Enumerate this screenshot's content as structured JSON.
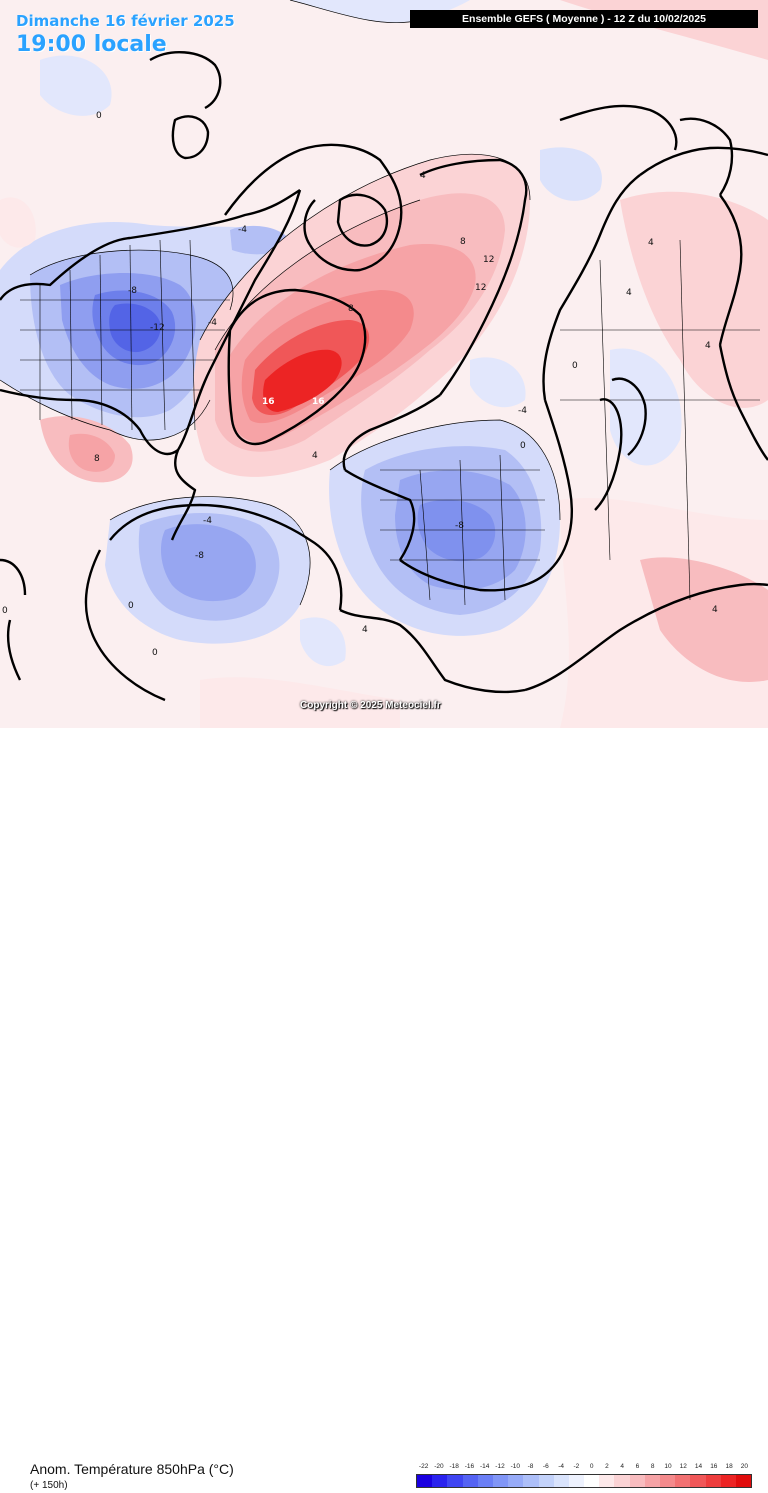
{
  "header": {
    "date_label": "Dimanche 16 février 2025",
    "time_label": "19:00 locale",
    "run_label": "Ensemble GEFS  ( Moyenne )  -  12 Z du 10/02/2025"
  },
  "map_labels": {
    "n_america_core": "-12",
    "n_america_mid": "-8",
    "n_america_outer": "-4",
    "greenland_a": "16",
    "greenland_b": "16",
    "greenland_c": "12",
    "greenland_d": "8",
    "greenland_e": "4",
    "arctic_a": "12",
    "arctic_b": "8",
    "arctic_c": "4",
    "atlantic_low_core": "-8",
    "atlantic_low_outer": "-4",
    "europe_core": "-8",
    "europe_outer": "-4",
    "us_east_warm": "8",
    "zero_a": "0",
    "zero_b": "0",
    "zero_c": "0",
    "zero_d": "0",
    "zero_e": "0",
    "zero_f": "0",
    "asia_a": "4",
    "asia_b": "4",
    "asia_c": "4",
    "asia_d": "4",
    "africa_a": "4",
    "canada_top": "-4"
  },
  "copyright": "Copyright © 2025 Meteociel.fr",
  "footer": {
    "parameter": "Anom. Température 850hPa (°C)",
    "lead": "(+ 150h)"
  },
  "scale": {
    "ticks": [
      "-22",
      "-20",
      "-18",
      "-16",
      "-14",
      "-12",
      "-10",
      "-8",
      "-6",
      "-4",
      "-2",
      "0",
      "2",
      "4",
      "6",
      "8",
      "10",
      "12",
      "14",
      "16",
      "18",
      "20"
    ],
    "colors": [
      "#1a00e0",
      "#2a22ee",
      "#3f45f2",
      "#5563f4",
      "#6b7ff6",
      "#8196f7",
      "#97abf8",
      "#adbff9",
      "#c3d2fa",
      "#d9e3fc",
      "#eef2fe",
      "#ffffff",
      "#fde9ea",
      "#fbd3d5",
      "#f8bcbf",
      "#f6a3a6",
      "#f48a8c",
      "#f27172",
      "#f05758",
      "#ee3d3d",
      "#ec2424",
      "#e00c0c"
    ]
  }
}
